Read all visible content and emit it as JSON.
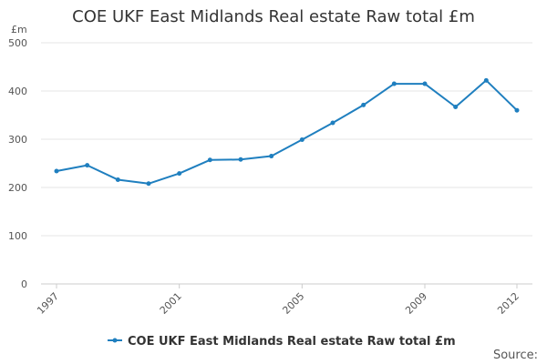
{
  "chart_data": {
    "type": "line",
    "title": "COE UKF East Midlands Real estate Raw total £m",
    "unit_label": "£m",
    "xlabel": "",
    "ylabel": "",
    "x": [
      1997,
      1998,
      1999,
      2000,
      2001,
      2002,
      2003,
      2004,
      2005,
      2006,
      2007,
      2008,
      2009,
      2010,
      2011,
      2012
    ],
    "x_tick_labels": [
      "1997",
      "2001",
      "2005",
      "2009",
      "2012"
    ],
    "y_ticks": [
      0,
      100,
      200,
      300,
      400,
      500
    ],
    "ylim": [
      0,
      500
    ],
    "grid": true,
    "legend_position": "bottom-center",
    "series": [
      {
        "name": "COE UKF East Midlands Real estate Raw total £m",
        "color": "#1f7fbf",
        "values": [
          234,
          246,
          216,
          208,
          229,
          257,
          258,
          265,
          299,
          334,
          371,
          415,
          415,
          367,
          422,
          360
        ]
      }
    ],
    "source_label": "Source:"
  }
}
